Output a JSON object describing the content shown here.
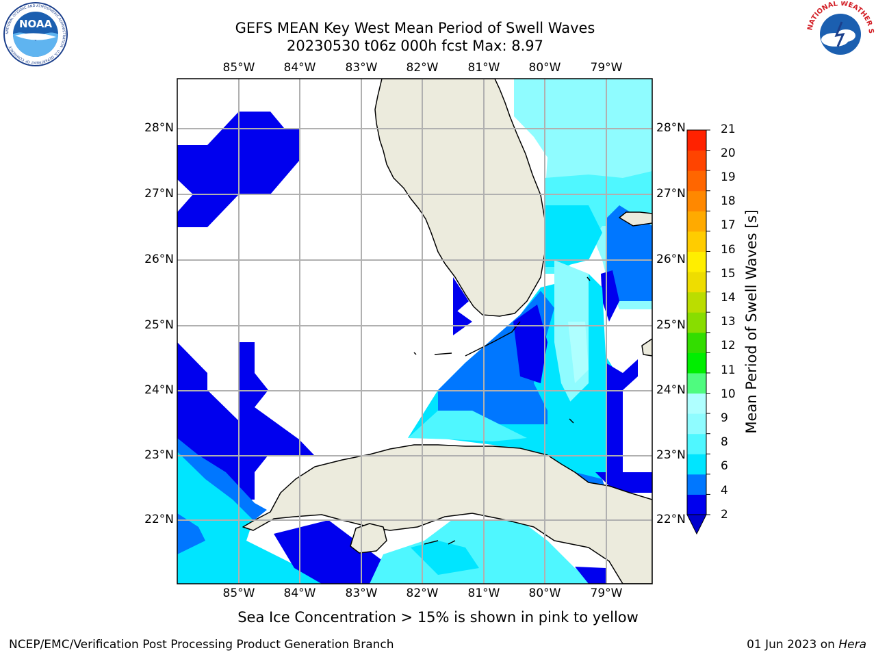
{
  "title": {
    "line1": "GEFS MEAN Key West Mean Period of Swell Waves",
    "line2": "20230530 t06z 000h fcst   Max: 8.97"
  },
  "map": {
    "lon_labels": [
      "85°W",
      "84°W",
      "83°W",
      "82°W",
      "81°W",
      "80°W",
      "79°W"
    ],
    "lat_labels": [
      "28°N",
      "27°N",
      "26°N",
      "25°N",
      "24°N",
      "23°N",
      "22°N"
    ],
    "land_color": "#ecebdd",
    "grid_color": "#b0b0b0"
  },
  "colorbar": {
    "label": "Mean Period of Swell Waves [s]",
    "ticks": [
      "21",
      "20",
      "19",
      "18",
      "17",
      "16",
      "15",
      "14",
      "13",
      "12",
      "11",
      "10",
      "9",
      "8",
      "6",
      "4",
      "2"
    ],
    "colors": [
      "#0000ee",
      "#0077ff",
      "#00e5ff",
      "#4ff7ff",
      "#8ffcff",
      "#afffff",
      "#4ffb7f",
      "#00ee00",
      "#33dd00",
      "#88dd00",
      "#bbdd00",
      "#eedd00",
      "#ffee00",
      "#ffcc00",
      "#ffaa00",
      "#ff8800",
      "#ff6600",
      "#ff4400",
      "#ff2200"
    ],
    "under_color": "#0000cc"
  },
  "logos": {
    "noaa_text": "NOAA",
    "noaa_ring_text": "NATIONAL OCEANIC AND ATMOSPHERIC ADMINISTRATION · U.S. DEPARTMENT OF COMMERCE",
    "nws_ring_text": "NATIONAL WEATHER SERVICE"
  },
  "note": "Sea Ice Concentration > 15% is shown in pink to yellow",
  "footer": {
    "left": "NCEP/EMC/Verification Post Processing Product Generation Branch",
    "right_date": "01 Jun 2023 on ",
    "right_host": "Hera"
  }
}
